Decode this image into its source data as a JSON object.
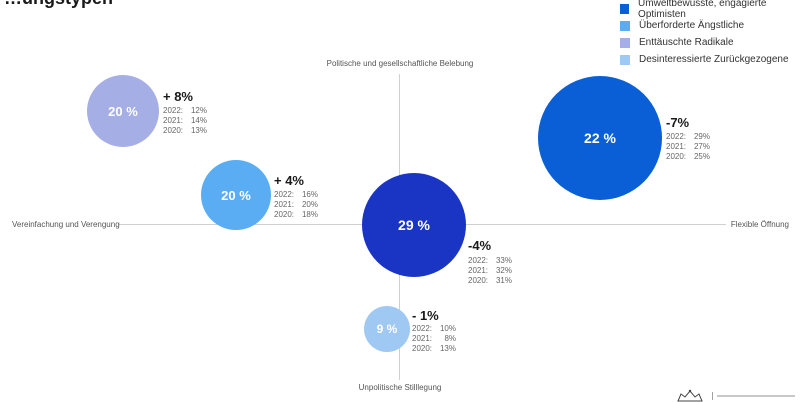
{
  "header": {
    "title": "…ungstypen"
  },
  "chart_data": {
    "type": "bubble",
    "axes": {
      "top": "Politische und gesellschaftliche Belebung",
      "bottom": "Unpolitische Stilllegung",
      "left": "Vereinfachung und Verengung",
      "right": "Flexible Öffnung"
    },
    "legend": [
      {
        "label": "Umweltbewusste, engagierte Optimisten",
        "color": "#0a5fd6"
      },
      {
        "label": "Überforderte Ängstliche",
        "color": "#5aadf2"
      },
      {
        "label": "Enttäuschte Radikale",
        "color": "#a6aee6"
      },
      {
        "label": "Desinteressierte Zurückgezogene",
        "color": "#9fc9f2"
      }
    ],
    "bubbles": [
      {
        "id": "radikale",
        "series": "Enttäuschte Radikale",
        "share": "20 %",
        "change": "+ 8%",
        "history": [
          {
            "year": "2022:",
            "value": "12%"
          },
          {
            "year": "2021:",
            "value": "14%"
          },
          {
            "year": "2020:",
            "value": "13%"
          }
        ],
        "color": "#a6aee6"
      },
      {
        "id": "aengstliche",
        "series": "Überforderte Ängstliche",
        "share": "20 %",
        "change": "+ 4%",
        "history": [
          {
            "year": "2022:",
            "value": "16%"
          },
          {
            "year": "2021:",
            "value": "20%"
          },
          {
            "year": "2020:",
            "value": "18%"
          }
        ],
        "color": "#5aadf2"
      },
      {
        "id": "optimisten",
        "series": "Umweltbewusste, engagierte Optimisten",
        "share": "22 %",
        "change": "-7%",
        "history": [
          {
            "year": "2022:",
            "value": "29%"
          },
          {
            "year": "2021:",
            "value": "27%"
          },
          {
            "year": "2020:",
            "value": "25%"
          }
        ],
        "color": "#0a5fd6"
      },
      {
        "id": "center",
        "series": "",
        "share": "29 %",
        "change": "-4%",
        "history": [
          {
            "year": "2022:",
            "value": "33%"
          },
          {
            "year": "2021:",
            "value": "32%"
          },
          {
            "year": "2020:",
            "value": "31%"
          }
        ],
        "color": "#1a35c4"
      },
      {
        "id": "zurueckgezogene",
        "series": "Desinteressierte Zurückgezogene",
        "share": "9 %",
        "change": "- 1%",
        "history": [
          {
            "year": "2022:",
            "value": "10%"
          },
          {
            "year": "2021:",
            "value": "8%"
          },
          {
            "year": "2020:",
            "value": "13%"
          }
        ],
        "color": "#9fc9f2"
      }
    ]
  }
}
